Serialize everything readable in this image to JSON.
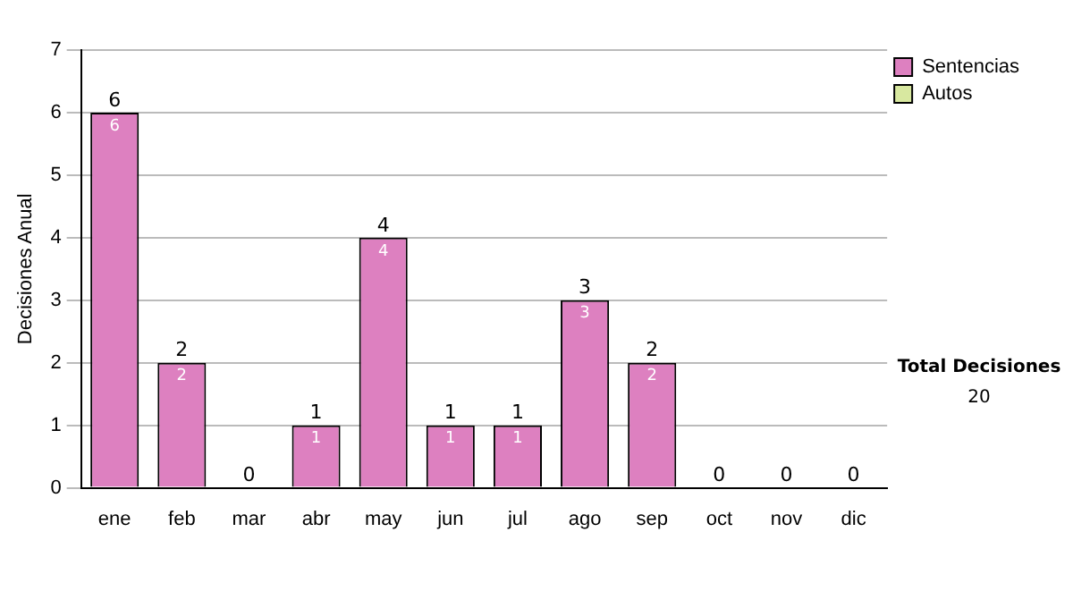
{
  "chart_data": {
    "type": "bar",
    "ylabel": "Decisiones Anual",
    "categories": [
      "ene",
      "feb",
      "mar",
      "abr",
      "may",
      "jun",
      "jul",
      "ago",
      "sep",
      "oct",
      "nov",
      "dic"
    ],
    "series": [
      {
        "name": "Sentencias",
        "color": "#dd80c0",
        "values": [
          6,
          2,
          0,
          1,
          4,
          1,
          1,
          3,
          2,
          0,
          0,
          0
        ],
        "value_labels": [
          "6",
          "2",
          null,
          "1",
          "4",
          "1",
          "1",
          "3",
          "2",
          null,
          null,
          null
        ]
      },
      {
        "name": "Autos",
        "color": "#d8e8a0",
        "values": [
          0,
          0,
          0,
          0,
          0,
          0,
          0,
          0,
          0,
          0,
          0,
          0
        ]
      }
    ],
    "stacked": true,
    "totals": [
      "6",
      "2",
      "0",
      "1",
      "4",
      "1",
      "1",
      "3",
      "2",
      "0",
      "0",
      "0"
    ],
    "ylim": [
      0,
      7
    ],
    "yticks": [
      0,
      1,
      2,
      3,
      4,
      5,
      6,
      7
    ],
    "grid": "y",
    "legend": "right",
    "annotations": [
      "Total Decisiones",
      "20"
    ]
  }
}
